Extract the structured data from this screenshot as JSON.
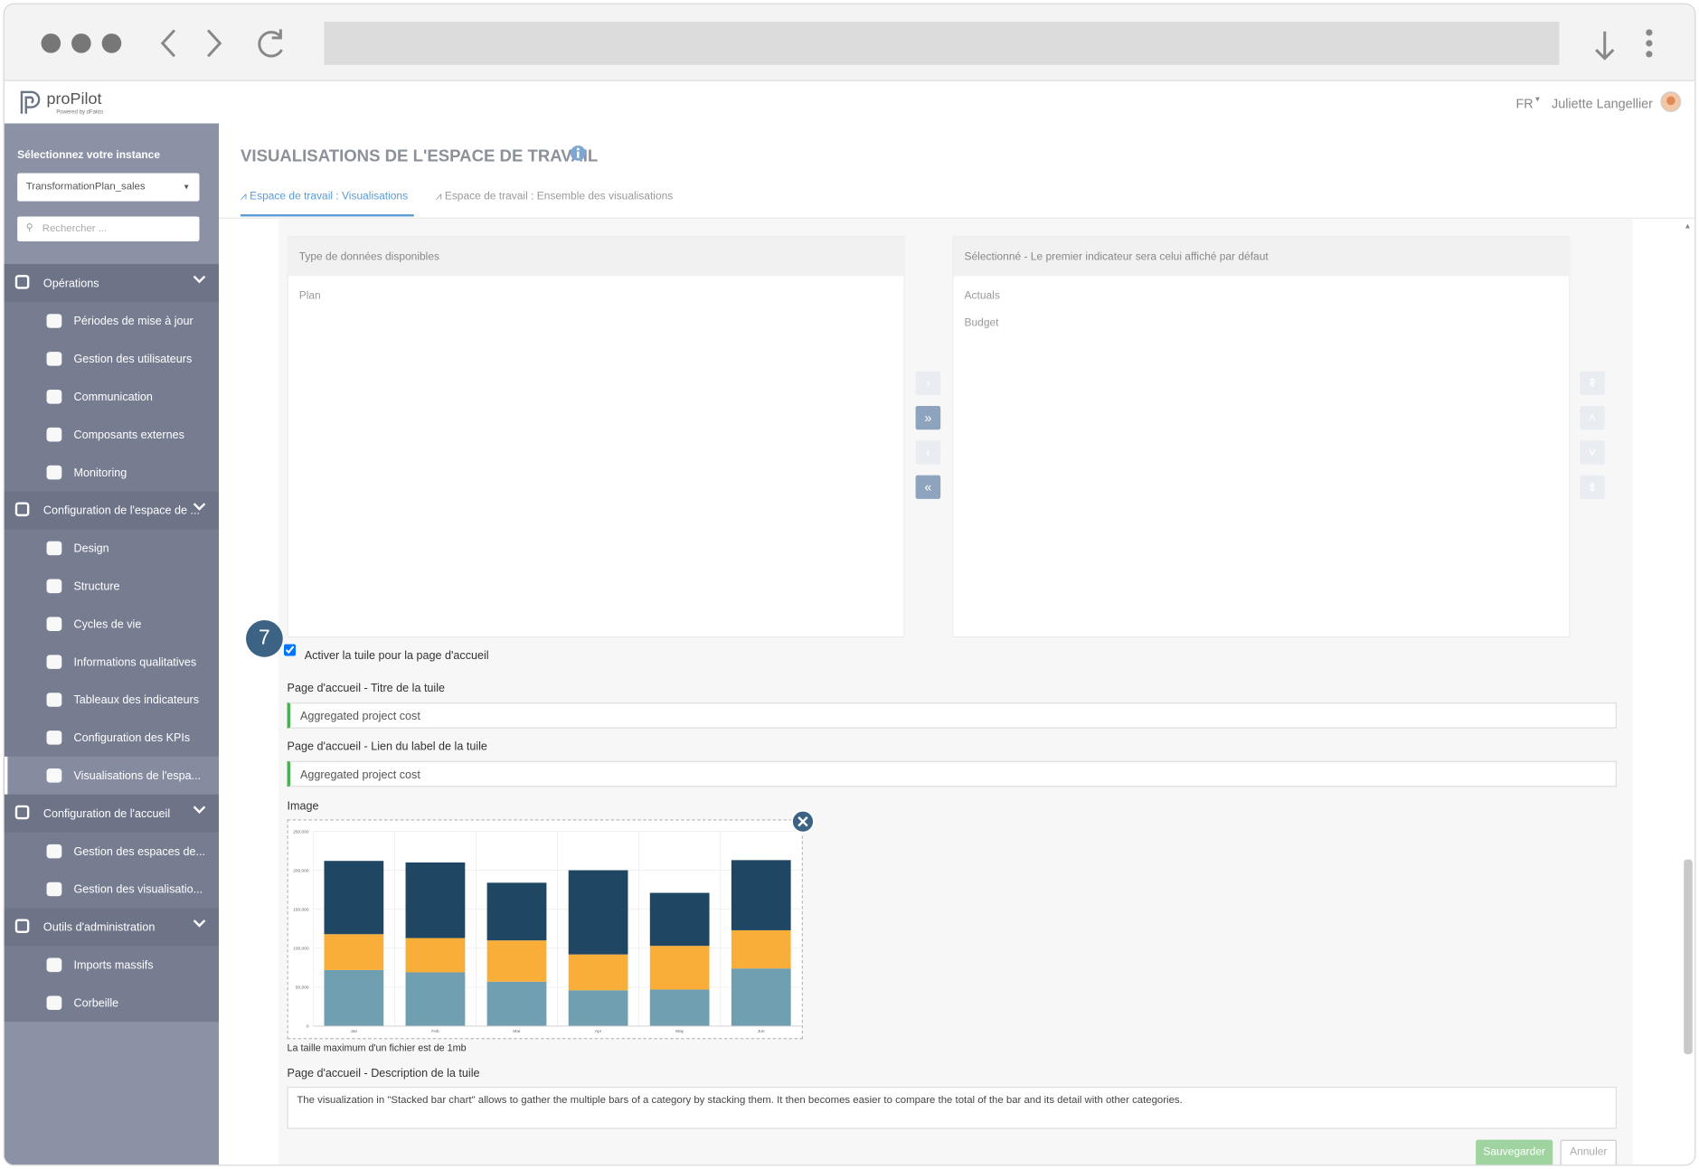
{
  "header": {
    "logo": "proPilot",
    "logo_sub": "Powered by dFakto",
    "language": "FR",
    "user": "Juliette Langellier"
  },
  "sidebar": {
    "instance_label": "Sélectionnez votre instance",
    "instance_value": "TransformationPlan_sales",
    "search_placeholder": "Rechercher ...",
    "sections": [
      {
        "label": "Opérations",
        "items": [
          "Périodes de mise à jour",
          "Gestion des utilisateurs",
          "Communication",
          "Composants externes",
          "Monitoring"
        ]
      },
      {
        "label": "Configuration de l'espace de ...",
        "items": [
          "Design",
          "Structure",
          "Cycles de vie",
          "Informations qualitatives",
          "Tableaux des indicateurs",
          "Configuration des KPIs",
          "Visualisations de l'espa..."
        ]
      },
      {
        "label": "Configuration de l'accueil",
        "items": [
          "Gestion des espaces de...",
          "Gestion des visualisatio..."
        ]
      },
      {
        "label": "Outils d'administration",
        "items": [
          "Imports massifs",
          "Corbeille"
        ]
      }
    ]
  },
  "page": {
    "title": "VISUALISATIONS DE L'ESPACE DE TRAVAIL",
    "tabs": [
      "Espace de travail : Visualisations",
      "Espace de travail : Ensemble des visualisations"
    ]
  },
  "transfer": {
    "available_header": "Type de données disponibles",
    "available_items": [
      "Plan"
    ],
    "selected_header": "Sélectionné - Le premier indicateur sera celui affiché par défaut",
    "selected_items": [
      "Actuals",
      "Budget"
    ]
  },
  "form": {
    "step": "7",
    "checkbox_label": "Activer la tuile pour la page d'accueil",
    "title_label": "Page d'accueil - Titre de la tuile",
    "title_value": "Aggregated project cost",
    "link_label": "Page d'accueil - Lien du label de la tuile",
    "link_value": "Aggregated project cost",
    "image_label": "Image",
    "image_note": "La taille maximum d'un fichier est de 1mb",
    "description_label": "Page d'accueil - Description de la tuile",
    "description_value": "The visualization in \"Stacked bar chart\" allows to gather the multiple bars of a category by stacking them. It then becomes easier to compare the total of the bar and its detail with other categories.",
    "save": "Sauvegarder",
    "cancel": "Annuler"
  },
  "chart_data": {
    "type": "stacked_bar",
    "categories": [
      "Jan",
      "Feb",
      "Mar",
      "Apr",
      "May",
      "Jun"
    ],
    "series": [
      {
        "color": "#6f9fb0",
        "values": [
          72000,
          69000,
          57000,
          46000,
          47000,
          74000
        ]
      },
      {
        "color": "#f9ae3a",
        "values": [
          46000,
          44000,
          53000,
          46000,
          56000,
          49000
        ]
      },
      {
        "color": "#1f4662",
        "values": [
          94000,
          97000,
          74000,
          108000,
          68000,
          90000
        ]
      }
    ],
    "ylim": [
      0,
      250000
    ],
    "yticks": [
      0,
      {
        "value": 50000,
        "label": "50,000"
      },
      {
        "value": 100000,
        "label": "100,000"
      },
      {
        "value": 150000,
        "label": "150,000"
      },
      {
        "value": 200000,
        "label": "200,000"
      },
      {
        "value": 250000,
        "label": "250,000"
      }
    ],
    "grid": true
  }
}
